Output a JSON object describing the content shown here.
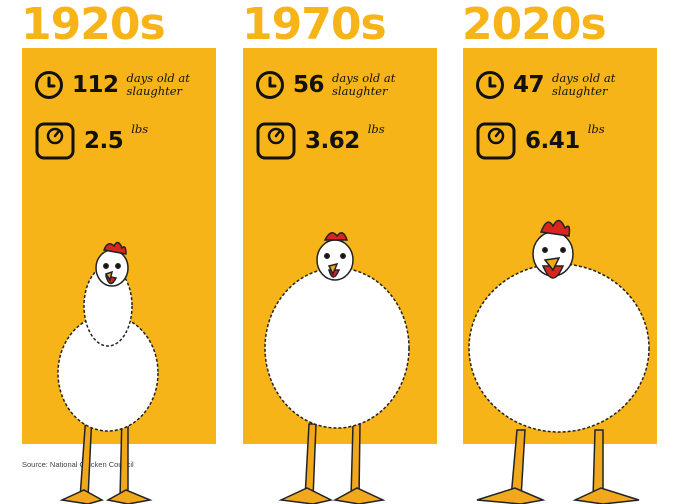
{
  "decades": [
    {
      "year": "1920s",
      "days": "112",
      "days_label_1": "days old at",
      "days_label_2": "slaughter",
      "weight": "2.5",
      "weight_unit": "lbs"
    },
    {
      "year": "1970s",
      "days": "56",
      "days_label_1": "days old at",
      "days_label_2": "slaughter",
      "weight": "3.62",
      "weight_unit": "lbs"
    },
    {
      "year": "2020s",
      "days": "47",
      "days_label_1": "days old at",
      "days_label_2": "slaughter",
      "weight": "6.41",
      "weight_unit": "lbs"
    }
  ],
  "source": "Source: National Chicken Council",
  "colors": {
    "panel": "#f7b418",
    "text": "#111111",
    "comb": "#d8261f",
    "feet": "#f2a81d"
  },
  "icons": [
    "clock-icon",
    "scale-icon",
    "chicken-illustration"
  ]
}
